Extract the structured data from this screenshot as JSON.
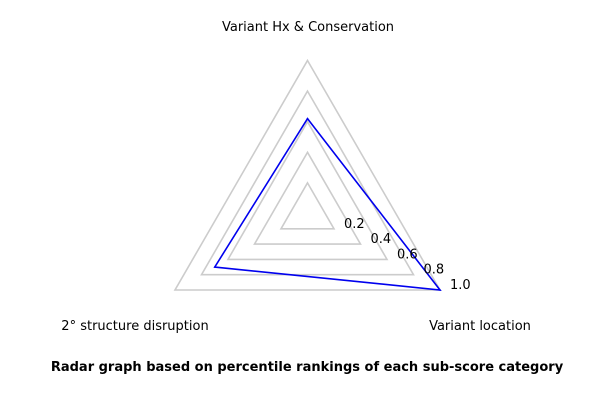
{
  "chart_data": {
    "type": "radar",
    "axes": [
      "Variant Hx & Conservation",
      "Variant location",
      "2° structure disruption"
    ],
    "series": [
      {
        "values": [
          0.62,
          1.0,
          0.7
        ]
      }
    ],
    "rlim": [
      0,
      1.0
    ],
    "ticks": [
      0.2,
      0.4,
      0.6,
      0.8,
      1.0
    ],
    "tick_labels": [
      "0.2",
      "0.4",
      "0.6",
      "0.8",
      "1.0"
    ],
    "grid": true,
    "caption": "Radar graph based on percentile rankings of each sub-score category",
    "colors": {
      "series": "#0000ee",
      "grid": "#cccccc"
    }
  }
}
